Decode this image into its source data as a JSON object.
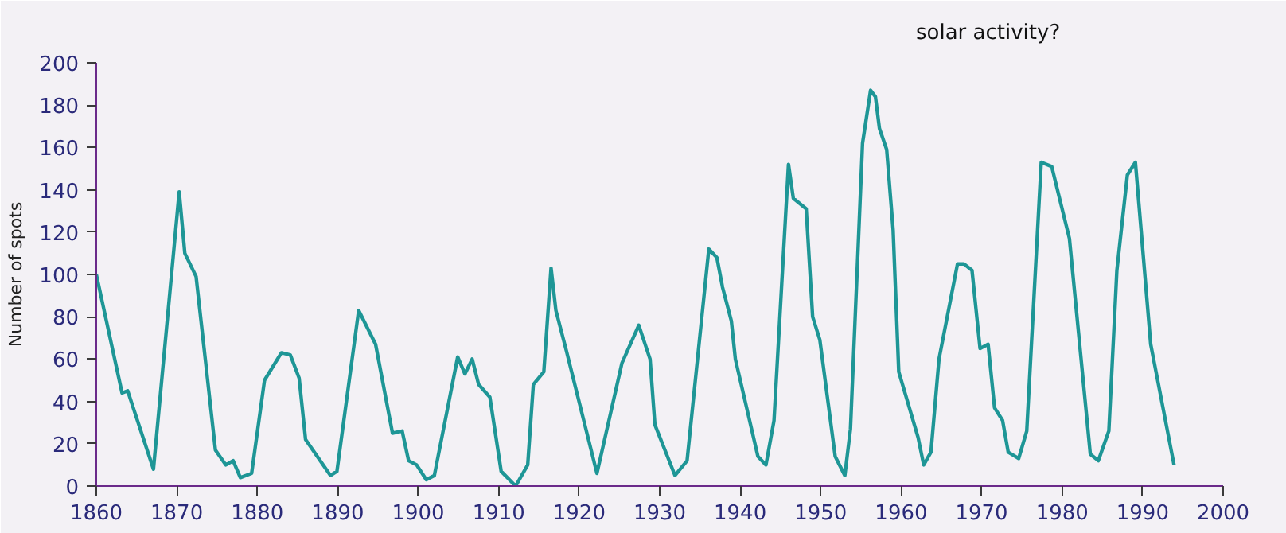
{
  "chart_data": {
    "type": "line",
    "ylabel": "Number of spots",
    "annotations": [
      "solar activity?"
    ],
    "xlim": [
      1860,
      2000
    ],
    "ylim": [
      0,
      200
    ],
    "xticks": [
      1860,
      1870,
      1880,
      1890,
      1900,
      1910,
      1920,
      1930,
      1940,
      1950,
      1960,
      1970,
      1980,
      1990,
      2000
    ],
    "yticks": [
      0,
      20,
      40,
      60,
      80,
      100,
      120,
      140,
      160,
      180,
      200
    ],
    "grid": false,
    "marker": "none",
    "line_style": "solid",
    "series": [
      {
        "color": "#1e9696",
        "x": [
          1860,
          1863.2,
          1863.9,
          1867.1,
          1870.3,
          1871,
          1872.4,
          1874.8,
          1876.1,
          1877,
          1877.9,
          1879.3,
          1880.9,
          1883,
          1884.1,
          1885.2,
          1886,
          1889.1,
          1889.9,
          1892.6,
          1894.7,
          1896.8,
          1898,
          1898.8,
          1899.8,
          1901,
          1902,
          1904.9,
          1905.8,
          1906.7,
          1907.5,
          1908.9,
          1910.3,
          1912.1,
          1913.6,
          1914.3,
          1915.6,
          1916.5,
          1917.1,
          1918.4,
          1922.2,
          1925.3,
          1927.4,
          1928.8,
          1929.4,
          1931.9,
          1933.4,
          1936.1,
          1937.1,
          1937.8,
          1938.9,
          1939.4,
          1942.2,
          1943.2,
          1944.2,
          1946,
          1946.6,
          1948.2,
          1949,
          1949.9,
          1951.8,
          1953,
          1953.7,
          1955.2,
          1956.2,
          1956.8,
          1957.3,
          1958.2,
          1959,
          1959.7,
          1962.1,
          1962.8,
          1963.7,
          1964.7,
          1967,
          1967.8,
          1968.8,
          1969.8,
          1970.8,
          1971.6,
          1972.6,
          1973.3,
          1974.6,
          1975.6,
          1977.4,
          1978.7,
          1980.9,
          1983.5,
          1984.5,
          1985.8,
          1986.8,
          1988.1,
          1989.1,
          1991,
          1993.9
        ],
        "values": [
          100,
          44,
          45,
          8,
          139,
          110,
          99,
          17,
          10,
          12,
          4,
          6,
          50,
          63,
          62,
          51,
          22,
          5,
          7,
          83,
          67,
          25,
          26,
          12,
          10,
          3,
          5,
          61,
          53,
          60,
          48,
          42,
          7,
          0,
          10,
          48,
          54,
          103,
          83,
          64,
          6,
          58,
          76,
          60,
          29,
          5,
          12,
          112,
          108,
          94,
          78,
          60,
          14,
          10,
          31,
          152,
          136,
          131,
          80,
          69,
          14,
          5,
          27,
          162,
          187,
          184,
          169,
          159,
          121,
          54,
          23,
          10,
          16,
          60,
          105,
          105,
          102,
          65,
          67,
          37,
          31,
          16,
          13,
          26,
          153,
          151,
          117,
          15,
          12,
          26,
          102,
          147,
          153,
          67,
          10
        ]
      }
    ]
  }
}
